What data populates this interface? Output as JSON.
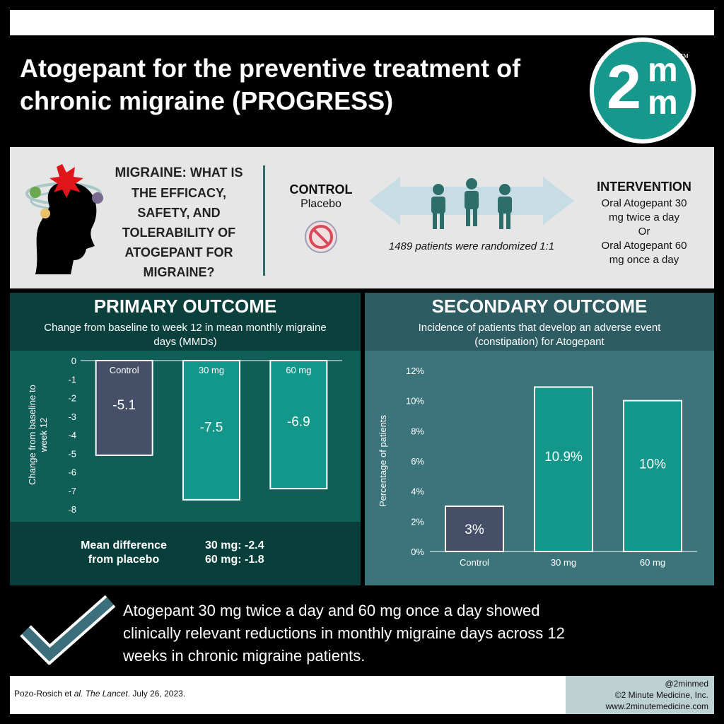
{
  "header": {
    "title_line1": "Atogepant for the preventive treatment of",
    "title_line2": "chronic migraine (PROGRESS)",
    "logo": {
      "digit": "2",
      "m_top": "m",
      "m_bottom": "m",
      "tm": "TM"
    }
  },
  "question": {
    "migraine_label": "MIGRAINE:",
    "q_line1": "WHAT IS",
    "q_line2": "THE EFFICACY,",
    "q_line3": "SAFETY, AND",
    "q_line4": "TOLERABILITY OF",
    "q_line5": "ATOGEPANT FOR",
    "q_line6": "MIGRAINE?",
    "control_title": "CONTROL",
    "control_sub": "Placebo",
    "randomized": "1489 patients were randomized 1:1",
    "intervention_title": "INTERVENTION",
    "intervention_lines": [
      "Oral Atogepant 30",
      "mg twice a day",
      "Or",
      "Oral Atogepant 60",
      "mg once a day"
    ]
  },
  "primary": {
    "title": "PRIMARY OUTCOME",
    "subtitle_line1": "Change from baseline to week 12 in mean monthly migraine",
    "subtitle_line2": "days (MMDs)",
    "mean_diff_label_line1": "Mean difference",
    "mean_diff_label_line2": "from placebo",
    "diff_30": "30 mg: -2.4",
    "diff_60": "60 mg: -1.8"
  },
  "secondary": {
    "title": "SECONDARY OUTCOME",
    "subtitle_line1": "Incidence of patients that develop an adverse event",
    "subtitle_line2": "(constipation) for Atogepant"
  },
  "chart_data": [
    {
      "type": "bar",
      "categories": [
        "Control",
        "30 mg",
        "60 mg"
      ],
      "values": [
        -5.1,
        -7.5,
        -6.9
      ],
      "value_labels": [
        "-5.1",
        "-7.5",
        "-6.9"
      ],
      "ylabel_line1": "Change from baseline to",
      "ylabel_line2": "week 12",
      "ylim": [
        -8,
        0
      ],
      "yticks": [
        "0",
        "-1",
        "-2",
        "-3",
        "-4",
        "-5",
        "-6",
        "-7",
        "-8"
      ],
      "colors": [
        "#454f68",
        "#12978a",
        "#12978a"
      ]
    },
    {
      "type": "bar",
      "categories": [
        "Control",
        "30 mg",
        "60 mg"
      ],
      "values": [
        3,
        10.9,
        10
      ],
      "value_labels": [
        "3%",
        "10.9%",
        "10%"
      ],
      "ylabel": "Percentage of patients",
      "ylim": [
        0,
        12
      ],
      "yticks": [
        "0%",
        "2%",
        "4%",
        "6%",
        "8%",
        "10%",
        "12%"
      ],
      "colors": [
        "#454f68",
        "#12978a",
        "#12978a"
      ]
    }
  ],
  "conclusion": {
    "line1": "Atogepant 30 mg twice a day and 60 mg once a day showed",
    "line2": "clinically relevant reductions in monthly migraine days across 12",
    "line3": "weeks in chronic migraine patients."
  },
  "footer": {
    "citation_author": "Pozo-Rosich et ",
    "citation_etal": "al.",
    "citation_journal": " The Lancet",
    "citation_date": ". July 26, 2023.",
    "credit_line1": "@2minmed",
    "credit_line2": "©2 Minute Medicine, Inc.",
    "credit_line3": "www.2minutemedicine.com"
  }
}
